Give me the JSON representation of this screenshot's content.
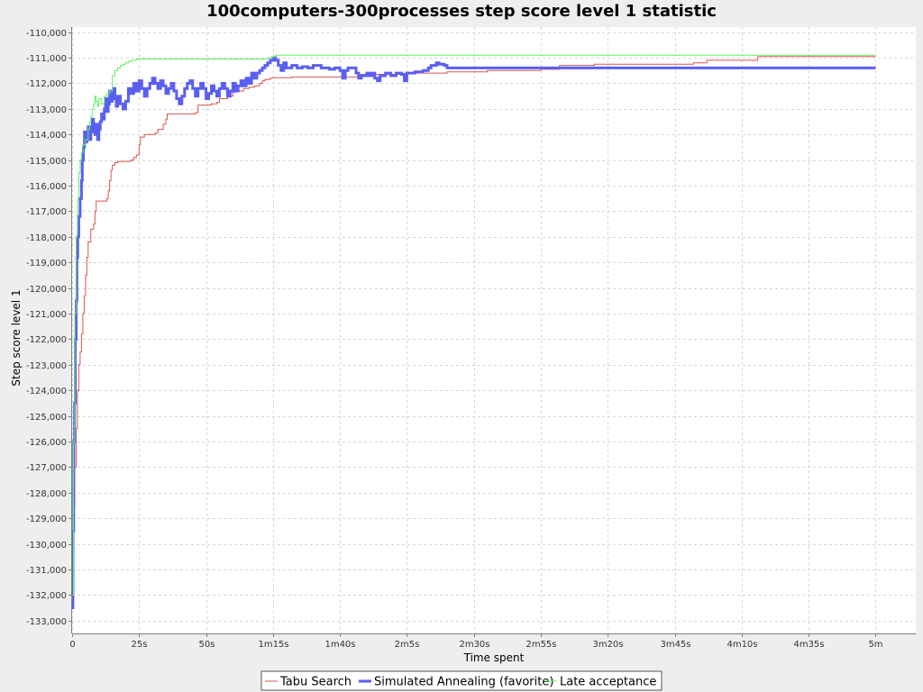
{
  "chart_data": {
    "type": "line",
    "title": "100computers-300processes step score level 1 statistic",
    "xlabel": "Time spent",
    "ylabel": "Step score level 1",
    "x_unit": "seconds",
    "xlim": [
      0,
      315
    ],
    "ylim": [
      -133500,
      -109800
    ],
    "x_ticks": [
      {
        "value": 0,
        "label": "0"
      },
      {
        "value": 25,
        "label": "25s"
      },
      {
        "value": 50,
        "label": "50s"
      },
      {
        "value": 75,
        "label": "1m15s"
      },
      {
        "value": 100,
        "label": "1m40s"
      },
      {
        "value": 125,
        "label": "2m5s"
      },
      {
        "value": 150,
        "label": "2m30s"
      },
      {
        "value": 175,
        "label": "2m55s"
      },
      {
        "value": 200,
        "label": "3m20s"
      },
      {
        "value": 225,
        "label": "3m45s"
      },
      {
        "value": 250,
        "label": "4m10s"
      },
      {
        "value": 275,
        "label": "4m35s"
      },
      {
        "value": 300,
        "label": "5m"
      }
    ],
    "y_ticks": [
      {
        "value": -110000,
        "label": "-110,000"
      },
      {
        "value": -111000,
        "label": "-111,000"
      },
      {
        "value": -112000,
        "label": "-112,000"
      },
      {
        "value": -113000,
        "label": "-113,000"
      },
      {
        "value": -114000,
        "label": "-114,000"
      },
      {
        "value": -115000,
        "label": "-115,000"
      },
      {
        "value": -116000,
        "label": "-116,000"
      },
      {
        "value": -117000,
        "label": "-117,000"
      },
      {
        "value": -118000,
        "label": "-118,000"
      },
      {
        "value": -119000,
        "label": "-119,000"
      },
      {
        "value": -120000,
        "label": "-120,000"
      },
      {
        "value": -121000,
        "label": "-121,000"
      },
      {
        "value": -122000,
        "label": "-122,000"
      },
      {
        "value": -123000,
        "label": "-123,000"
      },
      {
        "value": -124000,
        "label": "-124,000"
      },
      {
        "value": -125000,
        "label": "-125,000"
      },
      {
        "value": -126000,
        "label": "-126,000"
      },
      {
        "value": -127000,
        "label": "-127,000"
      },
      {
        "value": -128000,
        "label": "-128,000"
      },
      {
        "value": -129000,
        "label": "-129,000"
      },
      {
        "value": -130000,
        "label": "-130,000"
      },
      {
        "value": -131000,
        "label": "-131,000"
      },
      {
        "value": -132000,
        "label": "-132,000"
      },
      {
        "value": -133000,
        "label": "-133,000"
      }
    ],
    "grid": true,
    "legend_position": "bottom-center",
    "series": [
      {
        "name": "Tabu Search",
        "color": "#d9534f",
        "line_width": 1,
        "step": true,
        "points": [
          [
            0,
            -132000
          ],
          [
            0.3,
            -130000
          ],
          [
            0.6,
            -128500
          ],
          [
            1,
            -127000
          ],
          [
            1.5,
            -125500
          ],
          [
            2,
            -124000
          ],
          [
            2.5,
            -123000
          ],
          [
            3,
            -122500
          ],
          [
            3.5,
            -121800
          ],
          [
            4,
            -121000
          ],
          [
            4.5,
            -120300
          ],
          [
            5,
            -119500
          ],
          [
            5.5,
            -118800
          ],
          [
            6,
            -118200
          ],
          [
            7,
            -117700
          ],
          [
            8,
            -117500
          ],
          [
            8.5,
            -117000
          ],
          [
            9,
            -116600
          ],
          [
            13,
            -116500
          ],
          [
            13.5,
            -116200
          ],
          [
            14,
            -115800
          ],
          [
            14.5,
            -115400
          ],
          [
            15,
            -115200
          ],
          [
            16,
            -115100
          ],
          [
            17,
            -115050
          ],
          [
            22,
            -115000
          ],
          [
            23,
            -114900
          ],
          [
            24,
            -114800
          ],
          [
            25,
            -114400
          ],
          [
            25.5,
            -114100
          ],
          [
            27,
            -114000
          ],
          [
            31,
            -113950
          ],
          [
            32,
            -113800
          ],
          [
            34,
            -113600
          ],
          [
            35,
            -113400
          ],
          [
            35.5,
            -113200
          ],
          [
            46,
            -113150
          ],
          [
            47,
            -112850
          ],
          [
            52,
            -112800
          ],
          [
            54,
            -112750
          ],
          [
            55,
            -112600
          ],
          [
            58,
            -112500
          ],
          [
            60,
            -112350
          ],
          [
            61,
            -112300
          ],
          [
            64,
            -112200
          ],
          [
            66,
            -112150
          ],
          [
            68,
            -112100
          ],
          [
            70,
            -112000
          ],
          [
            71,
            -111900
          ],
          [
            72,
            -111850
          ],
          [
            74,
            -111800
          ],
          [
            75,
            -111780
          ],
          [
            82,
            -111750
          ],
          [
            108,
            -111650
          ],
          [
            125,
            -111600
          ],
          [
            140,
            -111550
          ],
          [
            155,
            -111500
          ],
          [
            175,
            -111450
          ],
          [
            182,
            -111300
          ],
          [
            195,
            -111250
          ],
          [
            232,
            -111200
          ],
          [
            237,
            -111100
          ],
          [
            256,
            -110950
          ],
          [
            300,
            -110950
          ]
        ]
      },
      {
        "name": "Simulated Annealing (favorite)",
        "color": "#5a5ff0",
        "line_width": 3,
        "step": true,
        "points": [
          [
            0,
            -132500
          ],
          [
            0.3,
            -129500
          ],
          [
            0.6,
            -126000
          ],
          [
            0.9,
            -124500
          ],
          [
            1.2,
            -122000
          ],
          [
            1.5,
            -120500
          ],
          [
            1.8,
            -118800
          ],
          [
            2.1,
            -118000
          ],
          [
            2.5,
            -117200
          ],
          [
            3,
            -116500
          ],
          [
            3.5,
            -115800
          ],
          [
            3.8,
            -115000
          ],
          [
            4.2,
            -114500
          ],
          [
            4.6,
            -113900
          ],
          [
            5,
            -114300
          ],
          [
            5.5,
            -114000
          ],
          [
            6,
            -113700
          ],
          [
            6.5,
            -114200
          ],
          [
            7,
            -113900
          ],
          [
            7.5,
            -113400
          ],
          [
            8,
            -113700
          ],
          [
            8.5,
            -114000
          ],
          [
            9,
            -113600
          ],
          [
            9.5,
            -114200
          ],
          [
            10,
            -113800
          ],
          [
            10.5,
            -113500
          ],
          [
            11,
            -113200
          ],
          [
            11.5,
            -113400
          ],
          [
            12,
            -113000
          ],
          [
            12.5,
            -112600
          ],
          [
            13,
            -113100
          ],
          [
            13.5,
            -112800
          ],
          [
            14,
            -112300
          ],
          [
            14.5,
            -112700
          ],
          [
            15,
            -112400
          ],
          [
            15.5,
            -112200
          ],
          [
            16,
            -112600
          ],
          [
            16.5,
            -112900
          ],
          [
            17,
            -112500
          ],
          [
            18,
            -112800
          ],
          [
            19,
            -113000
          ],
          [
            20,
            -112700
          ],
          [
            21,
            -112200
          ],
          [
            22,
            -112400
          ],
          [
            23,
            -112000
          ],
          [
            24,
            -112300
          ],
          [
            25,
            -111900
          ],
          [
            26,
            -112200
          ],
          [
            27,
            -112500
          ],
          [
            28,
            -112200
          ],
          [
            29,
            -112000
          ],
          [
            30,
            -111800
          ],
          [
            31,
            -112000
          ],
          [
            32,
            -112200
          ],
          [
            33,
            -111900
          ],
          [
            34,
            -112100
          ],
          [
            35,
            -112400
          ],
          [
            36,
            -112200
          ],
          [
            37,
            -112000
          ],
          [
            38,
            -112300
          ],
          [
            39,
            -112600
          ],
          [
            40,
            -112800
          ],
          [
            41,
            -112500
          ],
          [
            42,
            -112200
          ],
          [
            43,
            -112000
          ],
          [
            44,
            -111900
          ],
          [
            45,
            -112200
          ],
          [
            46,
            -112500
          ],
          [
            47,
            -112200
          ],
          [
            48,
            -112000
          ],
          [
            49,
            -112200
          ],
          [
            50,
            -112600
          ],
          [
            51,
            -112400
          ],
          [
            52,
            -112100
          ],
          [
            53,
            -112300
          ],
          [
            54,
            -112500
          ],
          [
            55,
            -112200
          ],
          [
            56,
            -112000
          ],
          [
            57,
            -112200
          ],
          [
            58,
            -112500
          ],
          [
            59,
            -112300
          ],
          [
            60,
            -112000
          ],
          [
            61,
            -112300
          ],
          [
            62,
            -112100
          ],
          [
            63,
            -111900
          ],
          [
            64,
            -112100
          ],
          [
            65,
            -111800
          ],
          [
            66,
            -112000
          ],
          [
            67,
            -111600
          ],
          [
            68,
            -111800
          ],
          [
            69,
            -111600
          ],
          [
            70,
            -111500
          ],
          [
            71,
            -111400
          ],
          [
            72,
            -111300
          ],
          [
            73,
            -111200
          ],
          [
            74,
            -111100
          ],
          [
            75,
            -111000
          ],
          [
            76,
            -111100
          ],
          [
            77,
            -111300
          ],
          [
            78,
            -111500
          ],
          [
            79,
            -111200
          ],
          [
            80,
            -111400
          ],
          [
            82,
            -111300
          ],
          [
            84,
            -111400
          ],
          [
            86,
            -111350
          ],
          [
            88,
            -111400
          ],
          [
            90,
            -111300
          ],
          [
            93,
            -111400
          ],
          [
            96,
            -111450
          ],
          [
            98,
            -111400
          ],
          [
            100,
            -111500
          ],
          [
            101,
            -111800
          ],
          [
            102,
            -111500
          ],
          [
            103,
            -111400
          ],
          [
            106,
            -111600
          ],
          [
            107,
            -111800
          ],
          [
            108,
            -111700
          ],
          [
            110,
            -111600
          ],
          [
            111,
            -111700
          ],
          [
            112,
            -111600
          ],
          [
            113,
            -111800
          ],
          [
            114,
            -111900
          ],
          [
            115,
            -111700
          ],
          [
            117,
            -111600
          ],
          [
            119,
            -111700
          ],
          [
            121,
            -111600
          ],
          [
            123,
            -111650
          ],
          [
            124,
            -111900
          ],
          [
            125,
            -111600
          ],
          [
            126,
            -111600
          ],
          [
            128,
            -111550
          ],
          [
            131,
            -111500
          ],
          [
            133,
            -111400
          ],
          [
            134,
            -111300
          ],
          [
            136,
            -111200
          ],
          [
            137,
            -111250
          ],
          [
            139,
            -111300
          ],
          [
            140,
            -111400
          ],
          [
            300,
            -111400
          ]
        ]
      },
      {
        "name": "Late acceptance",
        "color": "#5ef05e",
        "line_width": 1,
        "step": true,
        "points": [
          [
            0,
            -132000
          ],
          [
            0.5,
            -126000
          ],
          [
            1,
            -121000
          ],
          [
            1.5,
            -118000
          ],
          [
            2,
            -116500
          ],
          [
            2.5,
            -115500
          ],
          [
            3,
            -115000
          ],
          [
            3.5,
            -114700
          ],
          [
            4,
            -114400
          ],
          [
            5,
            -114200
          ],
          [
            6,
            -113800
          ],
          [
            6.5,
            -113500
          ],
          [
            7,
            -113300
          ],
          [
            7.5,
            -113000
          ],
          [
            8,
            -112800
          ],
          [
            8.5,
            -112500
          ],
          [
            9,
            -112700
          ],
          [
            9.5,
            -112900
          ],
          [
            10,
            -112600
          ],
          [
            11,
            -112800
          ],
          [
            12,
            -112500
          ],
          [
            13,
            -112400
          ],
          [
            14,
            -112300
          ],
          [
            15,
            -111700
          ],
          [
            16,
            -111500
          ],
          [
            17,
            -111400
          ],
          [
            18,
            -111300
          ],
          [
            19,
            -111250
          ],
          [
            20,
            -111200
          ],
          [
            21,
            -111150
          ],
          [
            22,
            -111100
          ],
          [
            24,
            -111050
          ],
          [
            35,
            -111050
          ],
          [
            60,
            -111050
          ],
          [
            72,
            -111050
          ],
          [
            73,
            -111000
          ],
          [
            75,
            -110950
          ],
          [
            76,
            -110900
          ],
          [
            300,
            -110900
          ]
        ]
      }
    ]
  }
}
